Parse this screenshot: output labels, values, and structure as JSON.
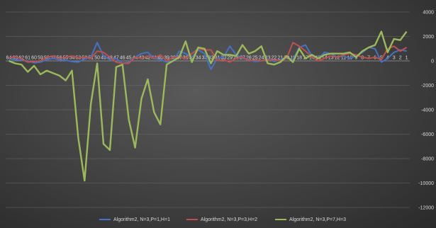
{
  "chart_data": {
    "type": "line",
    "title": "",
    "xlabel": "",
    "ylabel": "",
    "x": [
      64,
      63,
      62,
      61,
      60,
      59,
      58,
      57,
      56,
      55,
      54,
      53,
      52,
      51,
      50,
      49,
      48,
      47,
      46,
      45,
      44,
      43,
      42,
      41,
      40,
      39,
      38,
      37,
      36,
      35,
      34,
      33,
      32,
      31,
      30,
      29,
      28,
      27,
      26,
      25,
      24,
      23,
      22,
      21,
      20,
      19,
      18,
      17,
      16,
      15,
      14,
      13,
      12,
      11,
      10,
      9,
      8,
      7,
      6,
      5,
      4,
      3,
      2,
      1
    ],
    "ylim": [
      -12000,
      4000
    ],
    "yticks": [
      -12000,
      -10000,
      -8000,
      -6000,
      -4000,
      -2000,
      0,
      2000,
      4000
    ],
    "grid": true,
    "legend_position": "bottom",
    "series": [
      {
        "name": "Algorithm2, N=3,P=1,H=1",
        "color": "#4472c4",
        "values": [
          150,
          100,
          50,
          0,
          -150,
          -100,
          100,
          200,
          100,
          50,
          -50,
          -100,
          150,
          300,
          1500,
          400,
          100,
          200,
          -200,
          -100,
          300,
          600,
          700,
          200,
          100,
          -100,
          -50,
          800,
          600,
          300,
          900,
          600,
          -700,
          200,
          300,
          1200,
          500,
          200,
          100,
          -50,
          0,
          200,
          -50,
          100,
          300,
          100,
          1100,
          1300,
          400,
          200,
          700,
          600,
          300,
          400,
          200,
          400,
          700,
          1100,
          1000,
          -100,
          200,
          700,
          900,
          800
        ]
      },
      {
        "name": "Algorithm2, N=3,P=3,H=2",
        "color": "#c0504d",
        "values": [
          250,
          350,
          150,
          -100,
          -50,
          0,
          300,
          400,
          200,
          300,
          400,
          250,
          300,
          200,
          800,
          700,
          300,
          -100,
          -200,
          -200,
          300,
          200,
          400,
          200,
          500,
          0,
          300,
          300,
          200,
          600,
          1000,
          900,
          900,
          0,
          100,
          -100,
          200,
          300,
          0,
          100,
          0,
          100,
          100,
          0,
          200,
          1500,
          1200,
          800,
          300,
          0,
          200,
          400,
          300,
          500,
          600,
          500,
          300,
          200,
          300,
          100,
          1000,
          1200,
          800,
          1100
        ]
      },
      {
        "name": "Algorithm2, N=3,P=7,H=3",
        "color": "#9bbb59",
        "values": [
          0,
          -200,
          -300,
          -900,
          -400,
          -1100,
          -800,
          -1000,
          -1200,
          -1600,
          -800,
          -6300,
          -9800,
          -3500,
          -200,
          -6800,
          -7300,
          -500,
          -300,
          -4800,
          -7100,
          -3100,
          -1500,
          -4200,
          -5200,
          -300,
          0,
          300,
          1600,
          -100,
          1100,
          1000,
          -200,
          800,
          500,
          500,
          400,
          1300,
          600,
          800,
          1200,
          -200,
          -300,
          -100,
          400,
          -100,
          1000,
          200,
          500,
          200,
          500,
          600,
          600,
          600,
          700,
          300,
          800,
          1100,
          1300,
          2400,
          700,
          1800,
          1700,
          2400
        ]
      }
    ]
  }
}
